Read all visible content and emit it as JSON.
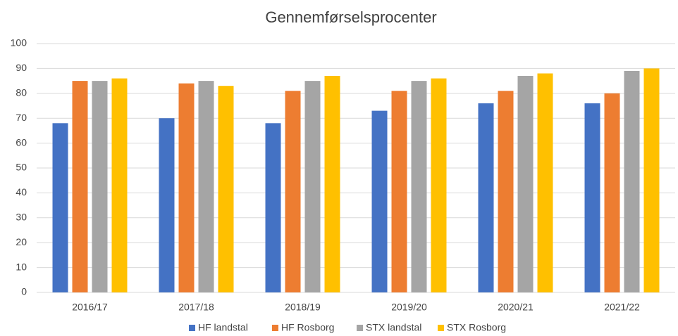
{
  "chart_data": {
    "type": "bar",
    "title": "Gennemførselsprocenter",
    "categories": [
      "2016/17",
      "2017/18",
      "2018/19",
      "2019/20",
      "2020/21",
      "2021/22"
    ],
    "series": [
      {
        "name": "HF landstal",
        "color": "#4472c4",
        "values": [
          68,
          70,
          68,
          73,
          76,
          76
        ]
      },
      {
        "name": "HF Rosborg",
        "color": "#ed7d31",
        "values": [
          85,
          84,
          81,
          81,
          81,
          80
        ]
      },
      {
        "name": "STX landstal",
        "color": "#a5a5a5",
        "values": [
          85,
          85,
          85,
          85,
          87,
          89
        ]
      },
      {
        "name": "STX Rosborg",
        "color": "#ffc000",
        "values": [
          86,
          83,
          87,
          86,
          88,
          90
        ]
      }
    ],
    "ylim": [
      0,
      100
    ],
    "yticks": [
      0,
      10,
      20,
      30,
      40,
      50,
      60,
      70,
      80,
      90,
      100
    ],
    "grid": true,
    "legend": "bottom"
  }
}
